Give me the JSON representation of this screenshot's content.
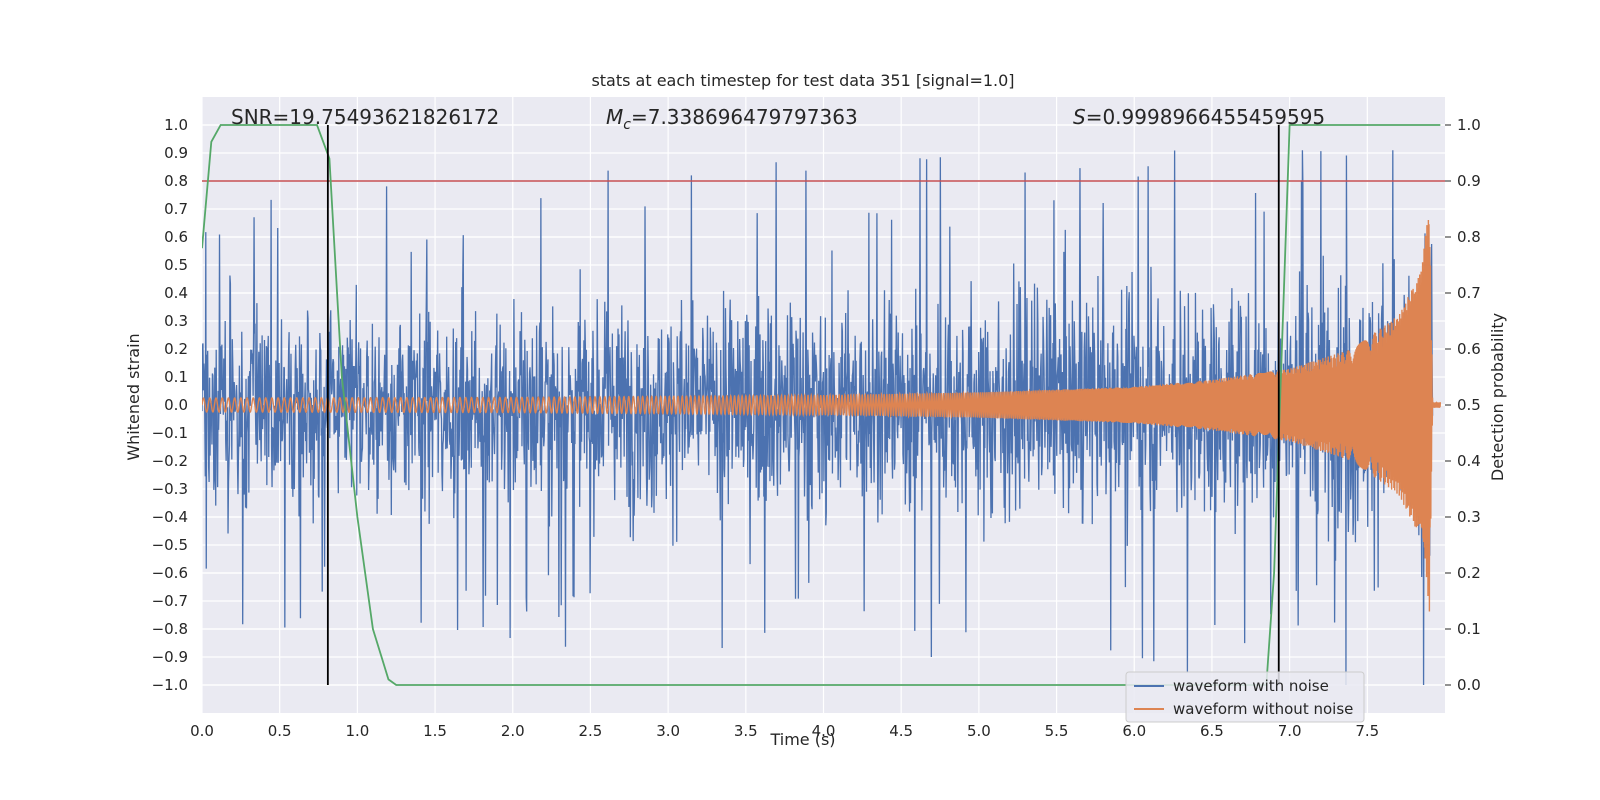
{
  "chart_data": {
    "type": "line",
    "title": "stats at each timestep for test data 351 [signal=1.0]",
    "xlabel": "Time (s)",
    "ylabel": "Whitened strain",
    "y2label": "Detection probability",
    "xlim": [
      0.0,
      8.0
    ],
    "ylim": [
      -1.1,
      1.1
    ],
    "y2lim": [
      -0.05,
      1.05
    ],
    "x_ticks": [
      0.0,
      0.5,
      1.0,
      1.5,
      2.0,
      2.5,
      3.0,
      3.5,
      4.0,
      4.5,
      5.0,
      5.5,
      6.0,
      6.5,
      7.0,
      7.5
    ],
    "y_ticks": [
      1.0,
      0.9,
      0.8,
      0.7,
      0.6,
      0.5,
      0.4,
      0.3,
      0.2,
      0.1,
      0.0,
      -0.1,
      -0.2,
      -0.3,
      -0.4,
      -0.5,
      -0.6,
      -0.7,
      -0.8,
      -0.9,
      -1.0
    ],
    "y_tick_labels": [
      "1.0",
      "0.9",
      "0.8",
      "0.7",
      "0.6",
      "0.5",
      "0.4",
      "0.3",
      "0.2",
      "0.1",
      "0.0",
      "−0.1",
      "−0.2",
      "−0.3",
      "−0.4",
      "−0.5",
      "−0.6",
      "−0.7",
      "−0.8",
      "−0.9",
      "−1.0"
    ],
    "y2_ticks": [
      1.0,
      0.9,
      0.8,
      0.7,
      0.6,
      0.5,
      0.4,
      0.3,
      0.2,
      0.1,
      0.0
    ],
    "annotations": {
      "snr": "SNR=19.75493621826172",
      "mc_symbol": "M",
      "mc_subscript": "c",
      "mc_value": "=7.338696479797363",
      "s_symbol": "S",
      "s_value": "=0.9998966455459595"
    },
    "legend": {
      "placement": "bottom-right",
      "entries": [
        "waveform with noise",
        "waveform without noise"
      ]
    },
    "series": [
      {
        "name": "waveform with noise",
        "color": "#4c72b0",
        "description": "noisy whitened strain, approx amplitude envelope",
        "t_end": 7.92,
        "upper_envelope": {
          "x": [
            0.0,
            1.0,
            2.0,
            3.0,
            4.0,
            5.0,
            6.0,
            7.0,
            7.5,
            7.92
          ],
          "y": [
            0.55,
            0.5,
            0.55,
            0.58,
            0.6,
            0.6,
            0.62,
            0.65,
            0.75,
            0.9
          ]
        },
        "peak_max": 0.91,
        "peak_min": -1.0
      },
      {
        "name": "waveform without noise",
        "color": "#dd8452",
        "description": "chirp signal",
        "amplitude": {
          "x": [
            0.0,
            2.0,
            4.0,
            5.0,
            6.0,
            6.5,
            7.0,
            7.4,
            7.7,
            7.85,
            7.9,
            7.92
          ],
          "y": [
            0.025,
            0.027,
            0.035,
            0.045,
            0.065,
            0.09,
            0.13,
            0.2,
            0.32,
            0.48,
            0.74,
            0.02
          ]
        },
        "frequency_hz": {
          "start": 25,
          "end": 220
        }
      },
      {
        "name": "detection probability",
        "color": "#55a868",
        "axis": "right",
        "x": [
          0.0,
          0.06,
          0.12,
          0.2,
          0.5,
          0.74,
          0.82,
          0.9,
          1.0,
          1.1,
          1.2,
          1.25,
          2.0,
          4.0,
          6.0,
          6.85,
          6.9,
          6.95,
          7.0,
          7.5,
          7.97
        ],
        "y": [
          0.78,
          0.97,
          1.0,
          1.0,
          1.0,
          1.0,
          0.94,
          0.55,
          0.3,
          0.1,
          0.01,
          0.0,
          0.0,
          0.0,
          0.0,
          0.0,
          0.2,
          0.6,
          1.0,
          1.0,
          1.0
        ]
      }
    ],
    "threshold_line": {
      "color": "#c44e52",
      "value": 0.9,
      "axis": "right"
    },
    "vertical_lines": {
      "color": "#000000",
      "x": [
        0.81,
        6.93
      ]
    }
  }
}
